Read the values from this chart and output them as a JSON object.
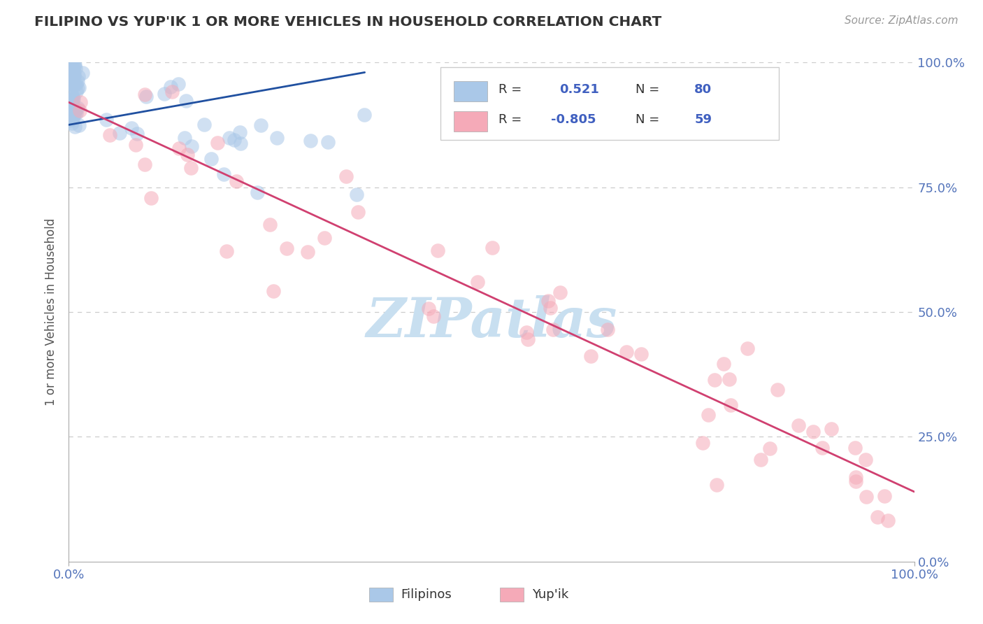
{
  "title": "FILIPINO VS YUP'IK 1 OR MORE VEHICLES IN HOUSEHOLD CORRELATION CHART",
  "source": "Source: ZipAtlas.com",
  "ylabel": "1 or more Vehicles in Household",
  "xlim": [
    0.0,
    1.0
  ],
  "ylim": [
    0.0,
    1.0
  ],
  "xtick_labels": [
    "0.0%",
    "100.0%"
  ],
  "ytick_labels": [
    "0.0%",
    "25.0%",
    "50.0%",
    "75.0%",
    "100.0%"
  ],
  "ytick_positions": [
    0.0,
    0.25,
    0.5,
    0.75,
    1.0
  ],
  "grid_color": "#cccccc",
  "background_color": "#ffffff",
  "filipino_color": "#aac8e8",
  "yupik_color": "#f5aab8",
  "filipino_line_color": "#2050a0",
  "yupik_line_color": "#d04070",
  "R_filipino": 0.521,
  "N_filipino": 80,
  "R_yupik": -0.805,
  "N_yupik": 59,
  "legend_text_color": "#333333",
  "legend_value_color": "#4060c0",
  "tick_color": "#5575bb",
  "watermark_color": "#c8dff0",
  "yupik_line_x0": 0.0,
  "yupik_line_y0": 0.92,
  "yupik_line_x1": 1.0,
  "yupik_line_y1": 0.14
}
